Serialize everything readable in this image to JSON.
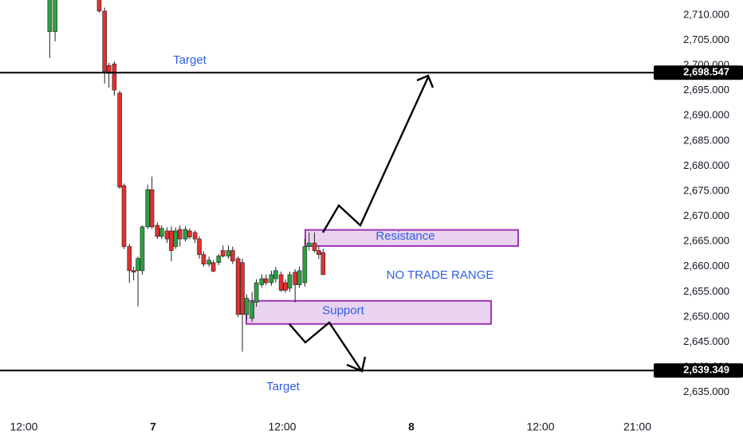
{
  "chart_data": {
    "type": "candlestick",
    "up_color": "#2f9e44",
    "down_color": "#e03131",
    "wick_color": "#222222",
    "grid": false,
    "xlim": [
      9.78,
      70.52
    ],
    "ylim": [
      2631.0,
      2713.0
    ],
    "xticks": [
      {
        "value": 12,
        "label": "12:00"
      },
      {
        "value": 24,
        "label": "7"
      },
      {
        "value": 36,
        "label": "12:00"
      },
      {
        "value": 48,
        "label": "8"
      },
      {
        "value": 60,
        "label": "12:00"
      },
      {
        "value": 69,
        "label": "21:00"
      }
    ],
    "yticks": [
      {
        "value": 2635,
        "label": "2,635.000"
      },
      {
        "value": 2640,
        "label": "2,640.000"
      },
      {
        "value": 2645,
        "label": "2,645.000"
      },
      {
        "value": 2650,
        "label": "2,650.000"
      },
      {
        "value": 2655,
        "label": "2,655.000"
      },
      {
        "value": 2660,
        "label": "2,660.000"
      },
      {
        "value": 2665,
        "label": "2,665.000"
      },
      {
        "value": 2670,
        "label": "2,670.000"
      },
      {
        "value": 2675,
        "label": "2,675.000"
      },
      {
        "value": 2680,
        "label": "2,680.000"
      },
      {
        "value": 2685,
        "label": "2,685.000"
      },
      {
        "value": 2690,
        "label": "2,690.000"
      },
      {
        "value": 2695,
        "label": "2,695.000"
      },
      {
        "value": 2700,
        "label": "2,700.000"
      },
      {
        "value": 2705,
        "label": "2,705.000"
      },
      {
        "value": 2710,
        "label": "2,710.000"
      }
    ],
    "x": [
      14.4,
      14.9,
      19.0,
      19.5,
      19.9,
      20.4,
      20.9,
      21.3,
      21.8,
      22.2,
      22.6,
      23.0,
      23.5,
      23.9,
      24.4,
      24.8,
      25.3,
      25.7,
      26.1,
      26.5,
      27.0,
      27.4,
      27.9,
      28.3,
      28.7,
      29.2,
      29.6,
      30.1,
      30.5,
      31.0,
      31.4,
      31.9,
      32.3,
      32.7,
      33.2,
      33.6,
      34.1,
      34.5,
      35.0,
      35.4,
      35.9,
      36.3,
      36.7,
      37.2,
      37.6,
      38.1,
      38.5,
      39.0,
      39.4,
      39.8
    ],
    "open": [
      2706.7,
      2706.7,
      2714,
      2710.8,
      2700.0,
      2700.3,
      2694.5,
      2676.1,
      2664.0,
      2659.2,
      2659.2,
      2659.2,
      2667.9,
      2675.3,
      2668.2,
      2666.0,
      2667.1,
      2667.1,
      2664.0,
      2667.4,
      2665.5,
      2667.1,
      2666.8,
      2665.5,
      2662.4,
      2660.5,
      2660.8,
      2660.8,
      2663.2,
      2662.1,
      2663.2,
      2661.6,
      2660.8,
      2650.5,
      2649.7,
      2652.9,
      2656.4,
      2657.6,
      2656.8,
      2657.6,
      2658.4,
      2656.8,
      2655.7,
      2658.9,
      2656.4,
      2656.8,
      2664.0,
      2664.7,
      2663.2,
      2662.8
    ],
    "high": [
      2715,
      2715,
      2715,
      2711.5,
      2700.5,
      2700.8,
      2695,
      2676.5,
      2664.5,
      2660,
      2662,
      2668.2,
      2676.3,
      2677.9,
      2668.8,
      2668.2,
      2667.8,
      2668,
      2667.8,
      2668.2,
      2668,
      2667.6,
      2667.2,
      2666,
      2663,
      2662,
      2661.3,
      2662.5,
      2664.2,
      2664.2,
      2664.0,
      2662,
      2661.6,
      2654.5,
      2655,
      2657.5,
      2658.5,
      2658.4,
      2659.2,
      2660,
      2659,
      2657.5,
      2659,
      2659.5,
      2660,
      2665.5,
      2666.8,
      2666.8,
      2664,
      2663.5
    ],
    "low": [
      2701.5,
      2704.8,
      2710.5,
      2696.4,
      2695.6,
      2694.0,
      2675.5,
      2663.5,
      2656.8,
      2657.3,
      2652.1,
      2658.4,
      2667.5,
      2667.5,
      2665.5,
      2665.5,
      2664.7,
      2661.1,
      2663.5,
      2664.0,
      2665,
      2665.5,
      2664.7,
      2661.6,
      2660,
      2660,
      2658.9,
      2660.3,
      2661.8,
      2661.6,
      2660.5,
      2650,
      2643.1,
      2649.5,
      2649,
      2652,
      2655.8,
      2656.3,
      2656.2,
      2656.8,
      2655,
      2654.8,
      2655,
      2652.9,
      2655.8,
      2656,
      2663.2,
      2662.8,
      2661.5,
      2658.4
    ],
    "close": [
      2714,
      2714,
      2710.8,
      2698.8,
      2698.4,
      2695.1,
      2675.8,
      2664.0,
      2659.2,
      2658.9,
      2661.6,
      2667.9,
      2675.3,
      2667.9,
      2666.0,
      2667.6,
      2665.5,
      2663.2,
      2667.1,
      2665.5,
      2667.4,
      2665.9,
      2665.5,
      2662.4,
      2660.5,
      2661.3,
      2659.1,
      2662.1,
      2662.1,
      2663.2,
      2661.1,
      2650.5,
      2650.5,
      2653.7,
      2652.9,
      2656.8,
      2657.6,
      2656.8,
      2658.4,
      2659.2,
      2655.3,
      2655.3,
      2658.4,
      2656.4,
      2659.2,
      2664.0,
      2664.7,
      2663.2,
      2662.4,
      2658.4
    ],
    "levels": [
      {
        "value": 2698.547,
        "label": "2,698.547"
      },
      {
        "value": 2639.349,
        "label": "2,639.349"
      }
    ],
    "zones": [
      {
        "label": "Resistance",
        "range": [
          2664.1,
          2667.3
        ]
      },
      {
        "label": "Support",
        "range": [
          2648.6,
          2653.2
        ]
      }
    ],
    "annotations": [
      "Target",
      "Target",
      "NO TRADE RANGE"
    ]
  }
}
